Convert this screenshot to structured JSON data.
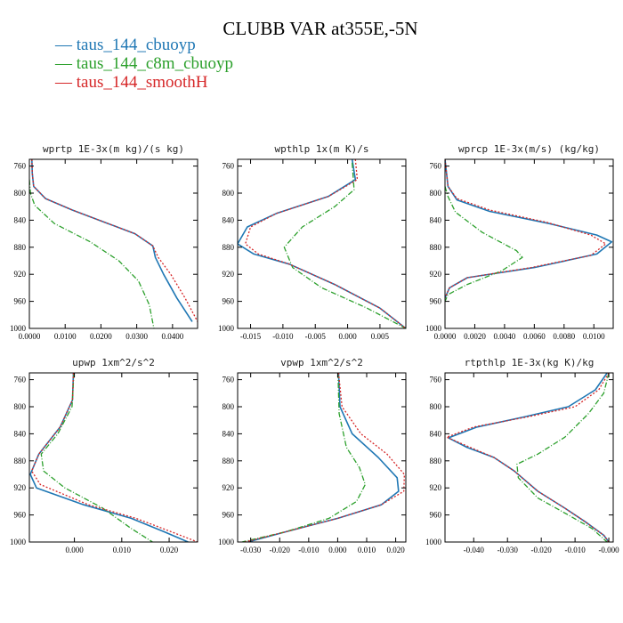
{
  "figure": {
    "title": "CLUBB VAR at355E,-5N",
    "legend": [
      {
        "label": "taus_144_cbuoyp",
        "color": "#1f77b4"
      },
      {
        "label": "taus_144_c8m_cbuoyp",
        "color": "#2ca02c"
      },
      {
        "label": "taus_144_smoothH",
        "color": "#d62728"
      }
    ]
  },
  "chart_data": [
    {
      "type": "line",
      "title": "wprtp  1E-3x(m kg)/(s kg)",
      "xlim": [
        0,
        0.047
      ],
      "ylim": [
        1000,
        750
      ],
      "y_inverted": true,
      "xticks": [
        0,
        0.01,
        0.02,
        0.03,
        0.04
      ],
      "xtick_labels": [
        "0.0000",
        "0.0100",
        "0.0200",
        "0.0300",
        "0.0400"
      ],
      "yticks": [
        760,
        800,
        840,
        880,
        920,
        960,
        1000
      ],
      "series": [
        {
          "name": "taus_144_cbuoyp",
          "color": "#1f77b4",
          "dash": "none",
          "x": [
            0.0007,
            0.0008,
            0.0012,
            0.0045,
            0.012,
            0.022,
            0.0295,
            0.0345,
            0.0352,
            0.0375,
            0.0412,
            0.0455
          ],
          "y": [
            750,
            770,
            790,
            808,
            825,
            845,
            860,
            878,
            895,
            920,
            955,
            990
          ]
        },
        {
          "name": "taus_144_c8m_cbuoyp",
          "color": "#2ca02c",
          "dash": "6,2,1,2",
          "x": [
            0,
            0.0003,
            0.0015,
            0.007,
            0.017,
            0.025,
            0.0305,
            0.0335,
            0.0348
          ],
          "y": [
            780,
            800,
            818,
            845,
            872,
            900,
            930,
            965,
            1000
          ]
        },
        {
          "name": "taus_144_smoothH",
          "color": "#d62728",
          "dash": "2,2",
          "x": [
            0.0007,
            0.0008,
            0.0012,
            0.0045,
            0.012,
            0.022,
            0.0295,
            0.0345,
            0.036,
            0.0395,
            0.0435,
            0.047
          ],
          "y": [
            750,
            770,
            790,
            808,
            825,
            845,
            860,
            878,
            895,
            920,
            955,
            990
          ]
        }
      ]
    },
    {
      "type": "line",
      "title": "wpthlp  1x(m K)/s",
      "xlim": [
        -0.017,
        0.009
      ],
      "ylim": [
        1000,
        750
      ],
      "y_inverted": true,
      "xticks": [
        -0.015,
        -0.01,
        -0.005,
        0,
        0.005
      ],
      "xtick_labels": [
        "-0.015",
        "-0.010",
        "-0.005",
        "0.000",
        "0.005"
      ],
      "yticks": [
        760,
        800,
        840,
        880,
        920,
        960,
        1000
      ],
      "series": [
        {
          "name": "taus_144_cbuoyp",
          "color": "#1f77b4",
          "dash": "none",
          "x": [
            0.0007,
            0.0012,
            -0.003,
            -0.011,
            -0.0155,
            -0.017,
            -0.0145,
            -0.009,
            -0.002,
            0.005,
            0.009
          ],
          "y": [
            750,
            780,
            805,
            830,
            850,
            875,
            890,
            905,
            935,
            970,
            1000
          ]
        },
        {
          "name": "taus_144_c8m_cbuoyp",
          "color": "#2ca02c",
          "dash": "6,2,1,2",
          "x": [
            0.0007,
            0.001,
            -0.002,
            -0.007,
            -0.0098,
            -0.0085,
            -0.004,
            0.003,
            0.009
          ],
          "y": [
            755,
            795,
            820,
            850,
            880,
            910,
            940,
            970,
            1000
          ]
        },
        {
          "name": "taus_144_smoothH",
          "color": "#d62728",
          "dash": "2,2",
          "x": [
            0.0012,
            0.0015,
            -0.003,
            -0.011,
            -0.015,
            -0.0158,
            -0.0138,
            -0.009,
            -0.002,
            0.005,
            0.009
          ],
          "y": [
            750,
            780,
            805,
            830,
            850,
            875,
            890,
            905,
            935,
            970,
            1000
          ]
        }
      ]
    },
    {
      "type": "line",
      "title": "wprcp  1E-3x(m/s) (kg/kg)",
      "xlim": [
        0,
        0.0113
      ],
      "ylim": [
        1000,
        750
      ],
      "y_inverted": true,
      "xticks": [
        0,
        0.002,
        0.004,
        0.006,
        0.008,
        0.01
      ],
      "xtick_labels": [
        "0.0000",
        "0.0020",
        "0.0040",
        "0.0060",
        "0.0080",
        "0.0100"
      ],
      "yticks": [
        760,
        800,
        840,
        880,
        920,
        960,
        1000
      ],
      "series": [
        {
          "name": "taus_144_cbuoyp",
          "color": "#1f77b4",
          "dash": "none",
          "x": [
            0,
            0.0002,
            0.0008,
            0.003,
            0.007,
            0.0102,
            0.0112,
            0.0102,
            0.006,
            0.0015,
            0.0003,
            0
          ],
          "y": [
            750,
            790,
            810,
            827,
            845,
            862,
            872,
            890,
            910,
            925,
            940,
            955
          ]
        },
        {
          "name": "taus_144_c8m_cbuoyp",
          "color": "#2ca02c",
          "dash": "6,2,1,2",
          "x": [
            0,
            0.0002,
            0.0007,
            0.0025,
            0.0048,
            0.0052,
            0.0038,
            0.0015,
            0.0002,
            0
          ],
          "y": [
            790,
            805,
            828,
            858,
            885,
            895,
            915,
            935,
            950,
            960
          ]
        },
        {
          "name": "taus_144_smoothH",
          "color": "#d62728",
          "dash": "2,2",
          "x": [
            0,
            0.0002,
            0.0008,
            0.003,
            0.0068,
            0.0098,
            0.0108,
            0.0098,
            0.0058,
            0.0015,
            0.0003,
            0
          ],
          "y": [
            750,
            790,
            808,
            825,
            843,
            862,
            875,
            892,
            910,
            925,
            940,
            955
          ]
        }
      ]
    },
    {
      "type": "line",
      "title": "upwp  1xm^2/s^2",
      "xlim": [
        -0.0095,
        0.026
      ],
      "ylim": [
        1000,
        750
      ],
      "y_inverted": true,
      "xticks": [
        0,
        0.01,
        0.02
      ],
      "xtick_labels": [
        "0.000",
        "0.010",
        "0.020"
      ],
      "yticks": [
        760,
        800,
        840,
        880,
        920,
        960,
        1000
      ],
      "series": [
        {
          "name": "taus_144_cbuoyp",
          "color": "#1f77b4",
          "dash": "none",
          "x": [
            -0.0002,
            -0.0004,
            -0.003,
            -0.0075,
            -0.0093,
            -0.008,
            0.002,
            0.012,
            0.019,
            0.024
          ],
          "y": [
            750,
            790,
            830,
            870,
            900,
            920,
            945,
            965,
            985,
            1000
          ]
        },
        {
          "name": "taus_144_c8m_cbuoyp",
          "color": "#2ca02c",
          "dash": "6,2,1,2",
          "x": [
            -0.0001,
            -0.0005,
            -0.0035,
            -0.007,
            -0.0065,
            -0.002,
            0.006,
            0.012,
            0.0165
          ],
          "y": [
            750,
            800,
            840,
            870,
            895,
            920,
            950,
            980,
            1000
          ]
        },
        {
          "name": "taus_144_smoothH",
          "color": "#d62728",
          "dash": "2,2",
          "x": [
            -0.0002,
            -0.0004,
            -0.003,
            -0.0075,
            -0.009,
            -0.0072,
            0.003,
            0.013,
            0.0205,
            0.026
          ],
          "y": [
            750,
            790,
            830,
            870,
            895,
            915,
            945,
            965,
            985,
            1000
          ]
        }
      ]
    },
    {
      "type": "line",
      "title": "vpwp  1xm^2/s^2",
      "xlim": [
        -0.0345,
        0.0235
      ],
      "ylim": [
        1000,
        750
      ],
      "y_inverted": true,
      "xticks": [
        -0.03,
        -0.02,
        -0.01,
        0,
        0.01,
        0.02
      ],
      "xtick_labels": [
        "-0.030",
        "-0.020",
        "-0.010",
        "0.000",
        "0.010",
        "0.020"
      ],
      "yticks": [
        760,
        800,
        840,
        880,
        920,
        960,
        1000
      ],
      "series": [
        {
          "name": "taus_144_cbuoyp",
          "color": "#1f77b4",
          "dash": "none",
          "x": [
            0.0003,
            0.0008,
            0.005,
            0.014,
            0.0205,
            0.021,
            0.015,
            0.0,
            -0.018,
            -0.031
          ],
          "y": [
            750,
            800,
            840,
            875,
            905,
            925,
            945,
            965,
            985,
            1000
          ]
        },
        {
          "name": "taus_144_c8m_cbuoyp",
          "color": "#2ca02c",
          "dash": "6,2,1,2",
          "x": [
            0.0001,
            0.0005,
            0.003,
            0.0075,
            0.0095,
            0.0065,
            -0.003,
            -0.018,
            -0.033
          ],
          "y": [
            750,
            810,
            860,
            890,
            915,
            940,
            965,
            985,
            1000
          ]
        },
        {
          "name": "taus_144_smoothH",
          "color": "#d62728",
          "dash": "2,2",
          "x": [
            0.0003,
            0.0015,
            0.008,
            0.017,
            0.023,
            0.0228,
            0.015,
            0.0,
            -0.018,
            -0.032
          ],
          "y": [
            750,
            800,
            840,
            870,
            900,
            925,
            945,
            965,
            985,
            1000
          ]
        }
      ]
    },
    {
      "type": "line",
      "title": "rtpthlp  1E-3x(kg K)/kg",
      "xlim": [
        -0.0485,
        0.0013
      ],
      "ylim": [
        1000,
        750
      ],
      "y_inverted": true,
      "xticks": [
        -0.04,
        -0.03,
        -0.02,
        -0.01,
        0
      ],
      "xtick_labels": [
        "-0.040",
        "-0.030",
        "-0.020",
        "-0.010",
        "-0.000"
      ],
      "yticks": [
        760,
        800,
        840,
        880,
        920,
        960,
        1000
      ],
      "series": [
        {
          "name": "taus_144_cbuoyp",
          "color": "#1f77b4",
          "dash": "none",
          "x": [
            -0.0005,
            -0.004,
            -0.012,
            -0.025,
            -0.039,
            -0.0475,
            -0.042,
            -0.034,
            -0.028,
            -0.021,
            -0.013,
            -0.007,
            -0.0015,
            0
          ],
          "y": [
            750,
            775,
            800,
            815,
            830,
            846,
            860,
            875,
            895,
            925,
            950,
            970,
            990,
            1000
          ]
        },
        {
          "name": "taus_144_c8m_cbuoyp",
          "color": "#2ca02c",
          "dash": "6,2,1,2",
          "x": [
            0,
            -0.0015,
            -0.006,
            -0.013,
            -0.021,
            -0.0272,
            -0.0268,
            -0.021,
            -0.012,
            -0.005,
            -0.0005
          ],
          "y": [
            750,
            780,
            810,
            845,
            870,
            885,
            905,
            935,
            960,
            980,
            1000
          ]
        },
        {
          "name": "taus_144_smoothH",
          "color": "#d62728",
          "dash": "2,2",
          "x": [
            0,
            -0.003,
            -0.01,
            -0.024,
            -0.04,
            -0.048,
            -0.042,
            -0.034,
            -0.028,
            -0.021,
            -0.013,
            -0.007,
            -0.0015,
            0
          ],
          "y": [
            750,
            775,
            800,
            815,
            830,
            845,
            858,
            875,
            895,
            925,
            950,
            970,
            990,
            1000
          ]
        }
      ]
    }
  ]
}
